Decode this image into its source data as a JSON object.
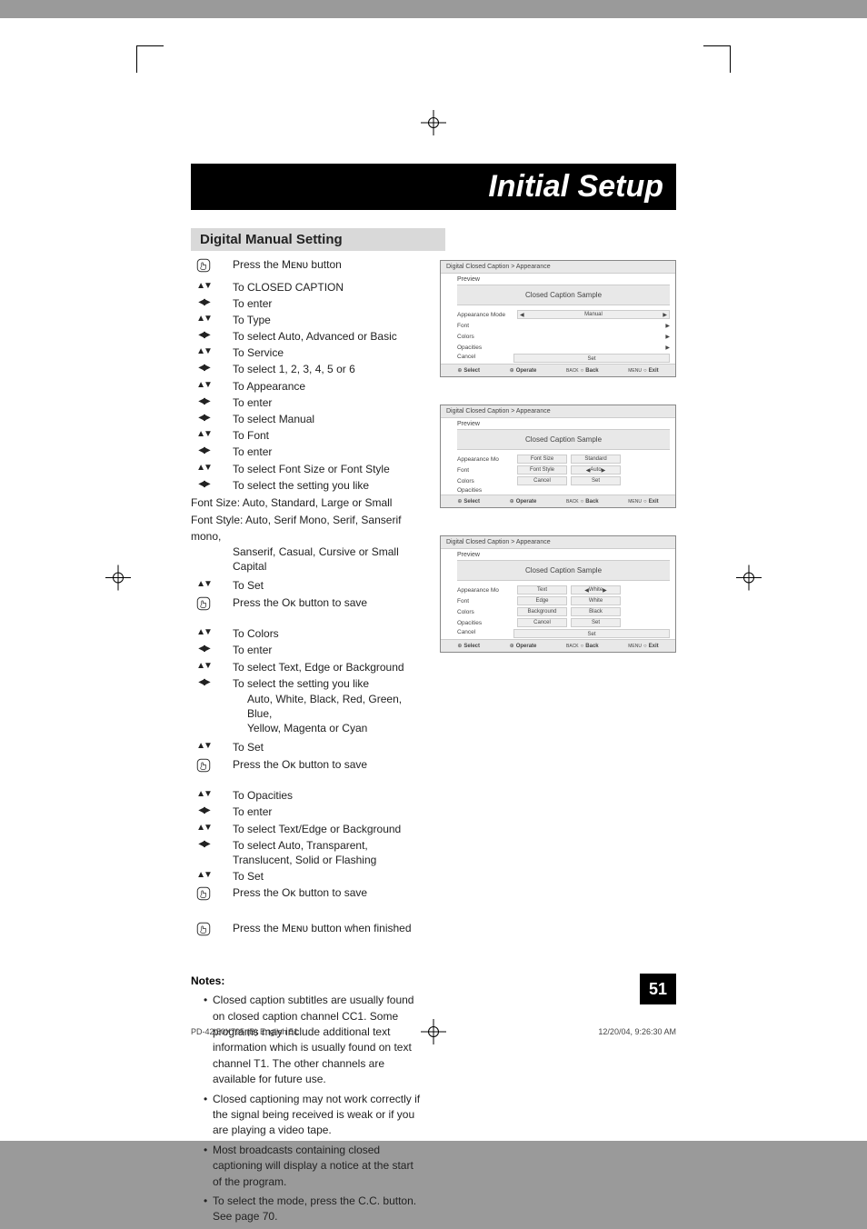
{
  "title": "Initial Setup",
  "subtitle": "Digital Manual Setting",
  "steps": [
    {
      "g": "hand",
      "t": "Press the Mᴇɴᴜ button"
    },
    {
      "g": "ud",
      "t": "To CLOSED CAPTION"
    },
    {
      "g": "lr",
      "t": "To enter"
    },
    {
      "g": "ud",
      "t": "To Type"
    },
    {
      "g": "lr",
      "t": "To select Auto, Advanced or Basic"
    },
    {
      "g": "ud",
      "t": "To Service"
    },
    {
      "g": "lr",
      "t": "To select 1, 2, 3, 4, 5 or 6"
    },
    {
      "g": "ud",
      "t": "To Appearance"
    },
    {
      "g": "lr",
      "t": "To enter"
    },
    {
      "g": "lr",
      "t": "To select Manual"
    },
    {
      "g": "ud",
      "t": "To Font"
    },
    {
      "g": "lr",
      "t": "To enter"
    },
    {
      "g": "ud",
      "t": "To select Font Size or Font Style"
    },
    {
      "g": "lr",
      "t": "To select the setting you like"
    }
  ],
  "font_size_note": "Font Size: Auto, Standard, Large or Small",
  "font_style_note_1": "Font Style: Auto, Serif Mono, Serif, Sanserif mono,",
  "font_style_note_2": "Sanserif, Casual, Cursive or Small Capital",
  "steps2": [
    {
      "g": "ud",
      "t": "To Set"
    },
    {
      "g": "hand",
      "t": "Press the Oᴋ button to save"
    }
  ],
  "steps3": [
    {
      "g": "ud",
      "t": "To Colors"
    },
    {
      "g": "lr",
      "t": "To enter"
    },
    {
      "g": "ud",
      "t": "To select Text, Edge or Background"
    },
    {
      "g": "lr",
      "t": "To select the setting you like"
    }
  ],
  "colors_note_1": "Auto, White, Black, Red, Green, Blue,",
  "colors_note_2": "Yellow, Magenta or Cyan",
  "steps4": [
    {
      "g": "ud",
      "t": "To Set"
    },
    {
      "g": "hand",
      "t": "Press the Oᴋ button to save"
    }
  ],
  "steps5": [
    {
      "g": "ud",
      "t": "To Opacities"
    },
    {
      "g": "lr",
      "t": "To enter"
    },
    {
      "g": "ud",
      "t": "To select Text/Edge or Background"
    },
    {
      "g": "lr",
      "t": "To select Auto, Transparent, Translucent, Solid or Flashing"
    },
    {
      "g": "ud",
      "t": "To Set"
    },
    {
      "g": "hand",
      "t": "Press the Oᴋ button to save"
    }
  ],
  "steps6": [
    {
      "g": "hand",
      "t": "Press the Mᴇɴᴜ button when finished"
    }
  ],
  "notes_h": "Notes:",
  "notes": [
    "Closed caption subtitles are usually found on closed caption channel CC1. Some programs may include additional text information which is usually found on text channel T1. The other channels are available for future use.",
    "Closed captioning may not work correctly if the signal being received is weak or if you are playing a video tape.",
    "Most broadcasts containing closed captioning will display a notice at the start of the program.",
    "To select the mode, press the C.C. button. See page 70."
  ],
  "osd": {
    "breadcrumb": "Digital Closed Caption  >  Appearance",
    "preview": "Preview",
    "sample": "Closed Caption Sample",
    "foot": {
      "select": "Select",
      "operate": "Operate",
      "back": "Back",
      "exit": "Exit",
      "back_sup": "BACK",
      "menu_sup": "MENU"
    },
    "panel1": {
      "rows": [
        {
          "lbl": "Appearance Mode",
          "val": "Manual",
          "arrows": true
        },
        {
          "lbl": "Font",
          "val": "",
          "arrow_r": true
        },
        {
          "lbl": "Colors",
          "val": "",
          "arrow_r": true
        },
        {
          "lbl": "Opacities",
          "val": "",
          "arrow_r": true
        }
      ],
      "cancel": "Cancel",
      "set": "Set"
    },
    "panel2": {
      "left": [
        "Appearance Mo",
        "Font",
        "Colors",
        "Opacities"
      ],
      "rows": [
        {
          "lbl": "Font Size",
          "val": "Standard"
        },
        {
          "lbl": "Font Style",
          "val": "Auto",
          "arrows": true
        }
      ],
      "cancel": "Cancel",
      "set": "Set"
    },
    "panel3": {
      "left": [
        "Appearance Mo",
        "Font",
        "Colors",
        "Opacities"
      ],
      "rows": [
        {
          "lbl": "Text",
          "val": "White",
          "arrows": true
        },
        {
          "lbl": "Edge",
          "val": "White"
        },
        {
          "lbl": "Background",
          "val": "Black"
        }
      ],
      "cancel": "Cancel",
      "set": "Set",
      "outer_cancel": "Cancel",
      "outer_set": "Set"
    }
  },
  "page_num": "51",
  "footer_left": "PD-42\\50X795 (B) English   51",
  "footer_right": "12/20/04, 9:26:30 AM"
}
